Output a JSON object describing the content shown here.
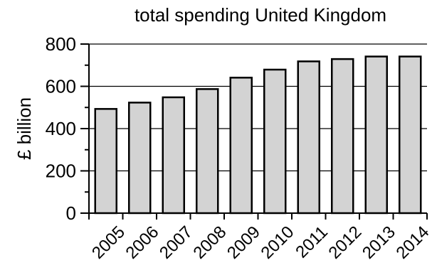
{
  "chart_data": {
    "type": "bar",
    "title": "total spending United Kingdom",
    "ylabel": "£ billion",
    "xlabel": "",
    "categories": [
      "2005",
      "2006",
      "2007",
      "2008",
      "2009",
      "2010",
      "2011",
      "2012",
      "2013",
      "2014"
    ],
    "values": [
      493,
      523,
      548,
      587,
      641,
      679,
      718,
      729,
      741,
      741
    ],
    "ylim": [
      0,
      800
    ],
    "yticks": [
      0,
      200,
      400,
      600,
      800
    ],
    "grid": true,
    "legend": "none",
    "colors": {
      "bar_fill": "#d3d3d3",
      "bar_stroke": "#000000",
      "axis": "#000000",
      "grid": "#000000",
      "text": "#000000"
    }
  }
}
